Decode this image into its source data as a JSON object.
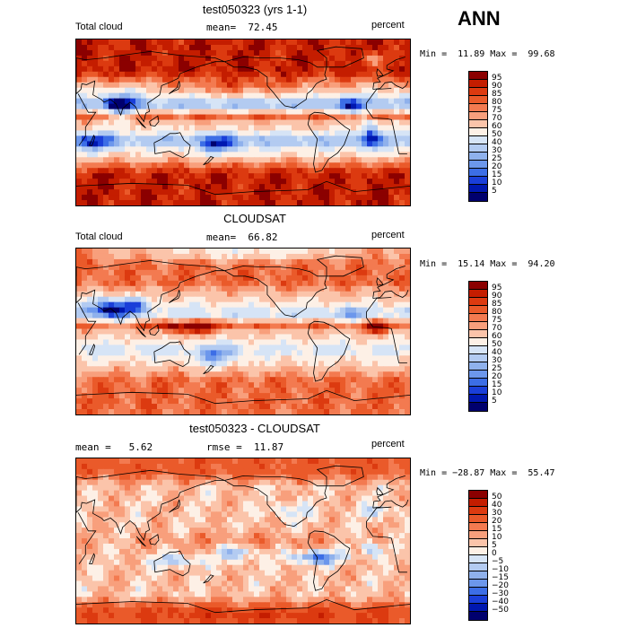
{
  "season": "ANN",
  "panels": [
    {
      "title": "test050323 (yrs 1-1)",
      "left_label": "Total cloud",
      "center_label": "mean=  72.45",
      "right_label": "percent",
      "minmax": "Min =  11.89 Max =  99.68",
      "levels": [
        "95",
        "90",
        "85",
        "80",
        "75",
        "70",
        "60",
        "50",
        "40",
        "30",
        "25",
        "20",
        "15",
        "10",
        "5"
      ],
      "colors": [
        "#8b0000",
        "#c41d00",
        "#dc3a10",
        "#ea5a2a",
        "#f37a50",
        "#f89f7c",
        "#fbc4aa",
        "#fdf0e6",
        "#d6e4f6",
        "#b3cbf1",
        "#8fb1ec",
        "#6c97ec",
        "#3c6ee6",
        "#1a3fd9",
        "#0018b0",
        "#00006e"
      ],
      "palette": "warm"
    },
    {
      "title": "CLOUDSAT",
      "left_label": "Total cloud",
      "center_label": "mean=  66.82",
      "right_label": "percent",
      "minmax": "Min =  15.14 Max =  94.20",
      "levels": [
        "95",
        "90",
        "85",
        "80",
        "75",
        "70",
        "60",
        "50",
        "40",
        "30",
        "25",
        "20",
        "15",
        "10",
        "5"
      ],
      "colors": [
        "#8b0000",
        "#c41d00",
        "#dc3a10",
        "#ea5a2a",
        "#f37a50",
        "#f89f7c",
        "#fbc4aa",
        "#fdf0e6",
        "#d6e4f6",
        "#b3cbf1",
        "#8fb1ec",
        "#6c97ec",
        "#3c6ee6",
        "#1a3fd9",
        "#0018b0",
        "#00006e"
      ],
      "palette": "obs"
    },
    {
      "title": "test050323 - CLOUDSAT",
      "left_label": "mean =   5.62",
      "center_label": "rmse =  11.87",
      "right_label": "percent",
      "minmax": "Min = −28.87 Max =  55.47",
      "levels": [
        "50",
        "40",
        "30",
        "20",
        "15",
        "10",
        "5",
        "0",
        "−5",
        "−10",
        "−15",
        "−20",
        "−30",
        "−40",
        "−50"
      ],
      "colors": [
        "#8b0000",
        "#c41d00",
        "#dc3a10",
        "#ea5a2a",
        "#f37a50",
        "#f89f7c",
        "#fbc4aa",
        "#fdf0e6",
        "#d6e4f6",
        "#b3cbf1",
        "#8fb1ec",
        "#6c97ec",
        "#3c6ee6",
        "#1a3fd9",
        "#0018b0",
        "#00006e"
      ],
      "palette": "diff"
    }
  ]
}
